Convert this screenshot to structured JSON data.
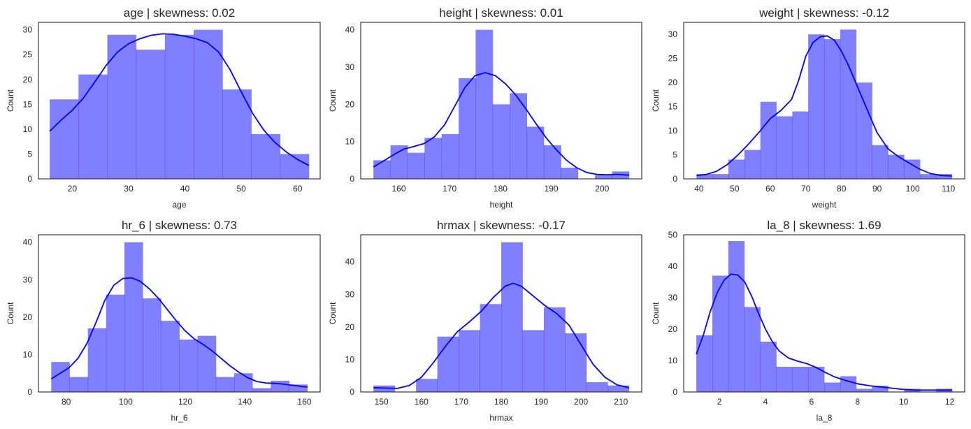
{
  "figure": {
    "bar_color": "#0000ff",
    "bar_opacity": 0.5,
    "kde_color": "#0000ff",
    "frame_color": "#262626"
  },
  "chart_data": [
    {
      "type": "bar",
      "subtype": "histogram",
      "title": "age | skewness: 0.02",
      "xlabel": "age",
      "ylabel": "Count",
      "bin_start": 16,
      "bin_end": 62,
      "values": [
        16,
        21,
        29,
        26,
        29,
        30,
        18,
        9,
        5
      ],
      "xlim": [
        14,
        64
      ],
      "ylim": [
        0,
        31.5
      ],
      "xticks": [
        20,
        30,
        40,
        50,
        60
      ],
      "yticks": [
        0,
        5,
        10,
        15,
        20,
        25,
        30
      ],
      "kde": [
        [
          16,
          9.6
        ],
        [
          18,
          11.8
        ],
        [
          20,
          13.8
        ],
        [
          22,
          16.3
        ],
        [
          24,
          19.5
        ],
        [
          26,
          22.8
        ],
        [
          28,
          25.5
        ],
        [
          30,
          27.2
        ],
        [
          32,
          28.2
        ],
        [
          34,
          28.9
        ],
        [
          36,
          29.2
        ],
        [
          38,
          29.1
        ],
        [
          40,
          28.7
        ],
        [
          42,
          28.2
        ],
        [
          44,
          27.4
        ],
        [
          46,
          25.5
        ],
        [
          48,
          22
        ],
        [
          50,
          17.5
        ],
        [
          52,
          13.2
        ],
        [
          54,
          9.8
        ],
        [
          56,
          7.3
        ],
        [
          58,
          5.4
        ],
        [
          60,
          3.9
        ],
        [
          62,
          2.7
        ]
      ]
    },
    {
      "type": "bar",
      "subtype": "histogram",
      "title": "height | skewness: 0.01",
      "xlabel": "height",
      "ylabel": "Count",
      "bin_start": 155,
      "bin_end": 205.3,
      "values": [
        5,
        9,
        7,
        11,
        12,
        27,
        40,
        20,
        23,
        14,
        9,
        3,
        0,
        1,
        2
      ],
      "xlim": [
        152.5,
        207.8
      ],
      "ylim": [
        0,
        42
      ],
      "xticks": [
        160,
        170,
        180,
        190,
        200
      ],
      "yticks": [
        0,
        10,
        20,
        30,
        40
      ],
      "kde": [
        [
          155,
          3.2
        ],
        [
          157,
          4.8
        ],
        [
          159,
          6.5
        ],
        [
          161,
          8
        ],
        [
          163,
          8.7
        ],
        [
          165,
          9.5
        ],
        [
          167,
          11.3
        ],
        [
          169,
          14.5
        ],
        [
          171,
          19.5
        ],
        [
          173,
          24.5
        ],
        [
          175,
          27.7
        ],
        [
          177,
          28.5
        ],
        [
          179,
          27.7
        ],
        [
          181,
          25.5
        ],
        [
          183,
          22.5
        ],
        [
          185,
          18.8
        ],
        [
          187,
          14.8
        ],
        [
          189,
          11
        ],
        [
          191,
          7.8
        ],
        [
          193,
          5
        ],
        [
          195,
          3
        ],
        [
          197,
          1.7
        ],
        [
          199,
          1.2
        ],
        [
          201,
          1.1
        ],
        [
          203,
          1.2
        ],
        [
          205.3,
          1
        ]
      ]
    },
    {
      "type": "bar",
      "subtype": "histogram",
      "title": "weight | skewness: -0.12",
      "xlabel": "weight",
      "ylabel": "Count",
      "bin_start": 39.3,
      "bin_end": 111,
      "values": [
        1,
        1,
        4,
        6,
        16,
        13,
        14,
        30,
        29,
        31,
        20,
        7,
        5,
        4,
        1,
        1
      ],
      "xlim": [
        35.7,
        114.6
      ],
      "ylim": [
        0,
        32.5
      ],
      "xticks": [
        40,
        50,
        60,
        70,
        80,
        90,
        100,
        110
      ],
      "yticks": [
        0,
        5,
        10,
        15,
        20,
        25,
        30
      ],
      "kde": [
        [
          39.3,
          0.7
        ],
        [
          42,
          0.9
        ],
        [
          45,
          1.6
        ],
        [
          48,
          3
        ],
        [
          51,
          5
        ],
        [
          54,
          7.3
        ],
        [
          57,
          9.8
        ],
        [
          60,
          12.5
        ],
        [
          63,
          14.2
        ],
        [
          66,
          16.5
        ],
        [
          68,
          20.5
        ],
        [
          70,
          25.5
        ],
        [
          72,
          28.3
        ],
        [
          74,
          29.5
        ],
        [
          76,
          29.7
        ],
        [
          78,
          28.8
        ],
        [
          80,
          26.5
        ],
        [
          82,
          23.5
        ],
        [
          84,
          20
        ],
        [
          86,
          16.5
        ],
        [
          88,
          13
        ],
        [
          90,
          9.6
        ],
        [
          93,
          6.3
        ],
        [
          96,
          4.6
        ],
        [
          99,
          3.3
        ],
        [
          102,
          2
        ],
        [
          105,
          1.1
        ],
        [
          108,
          0.7
        ],
        [
          111,
          0.6
        ]
      ]
    },
    {
      "type": "bar",
      "subtype": "histogram",
      "title": "hr_6 | skewness: 0.73",
      "xlabel": "hr_6",
      "ylabel": "Count",
      "bin_start": 75,
      "bin_end": 161,
      "values": [
        8,
        4,
        17,
        26,
        40,
        25,
        19,
        14,
        15,
        4,
        5,
        1,
        3,
        2
      ],
      "xlim": [
        70.7,
        165.3
      ],
      "ylim": [
        0,
        42
      ],
      "xticks": [
        80,
        100,
        120,
        140,
        160
      ],
      "yticks": [
        0,
        10,
        20,
        30,
        40
      ],
      "kde": [
        [
          75,
          3.5
        ],
        [
          78,
          5
        ],
        [
          81,
          6.5
        ],
        [
          84,
          9
        ],
        [
          87,
          13
        ],
        [
          90,
          18.5
        ],
        [
          93,
          24.5
        ],
        [
          96,
          28.5
        ],
        [
          99,
          30.3
        ],
        [
          102,
          30.5
        ],
        [
          105,
          29.5
        ],
        [
          108,
          27.5
        ],
        [
          111,
          25
        ],
        [
          114,
          22
        ],
        [
          117,
          19
        ],
        [
          120,
          16.3
        ],
        [
          123,
          14.2
        ],
        [
          126,
          12.7
        ],
        [
          129,
          11
        ],
        [
          132,
          9
        ],
        [
          135,
          7
        ],
        [
          138,
          5.3
        ],
        [
          141,
          3.8
        ],
        [
          144,
          2.8
        ],
        [
          147,
          2.4
        ],
        [
          150,
          2.3
        ],
        [
          153,
          2.1
        ],
        [
          156,
          1.8
        ],
        [
          159,
          1.5
        ],
        [
          161,
          1.3
        ]
      ]
    },
    {
      "type": "bar",
      "subtype": "histogram",
      "title": "hrmax | skewness: -0.17",
      "xlabel": "hrmax",
      "ylabel": "Count",
      "bin_start": 148,
      "bin_end": 212,
      "values": [
        2,
        0,
        4,
        17,
        19,
        27,
        46,
        19,
        26,
        18,
        3,
        2
      ],
      "xlim": [
        144.8,
        215.2
      ],
      "ylim": [
        0,
        48.3
      ],
      "xticks": [
        150,
        160,
        170,
        180,
        190,
        200,
        210
      ],
      "yticks": [
        0,
        10,
        20,
        30,
        40
      ],
      "kde": [
        [
          148,
          1.3
        ],
        [
          151,
          1.2
        ],
        [
          154,
          1.1
        ],
        [
          157,
          2
        ],
        [
          160,
          4.5
        ],
        [
          163,
          9
        ],
        [
          166,
          14
        ],
        [
          169,
          18.5
        ],
        [
          172,
          21.5
        ],
        [
          175,
          24.8
        ],
        [
          178,
          29
        ],
        [
          181,
          32.5
        ],
        [
          183,
          33.4
        ],
        [
          185,
          32.5
        ],
        [
          188,
          29.5
        ],
        [
          191,
          26.5
        ],
        [
          194,
          24
        ],
        [
          197,
          20.5
        ],
        [
          200,
          14.5
        ],
        [
          203,
          8.5
        ],
        [
          206,
          4.5
        ],
        [
          209,
          2.2
        ],
        [
          212,
          1.3
        ]
      ]
    },
    {
      "type": "bar",
      "subtype": "histogram",
      "title": "la_8 | skewness: 1.69",
      "xlabel": "la_8",
      "ylabel": "Count",
      "bin_start": 1,
      "bin_end": 12.1,
      "values": [
        18,
        37,
        48,
        27,
        16,
        8,
        8,
        8,
        3,
        5,
        1,
        2,
        0,
        1,
        0,
        1
      ],
      "xlim": [
        0.45,
        12.65
      ],
      "ylim": [
        0,
        50
      ],
      "xticks": [
        2,
        4,
        6,
        8,
        10,
        12
      ],
      "yticks": [
        0,
        10,
        20,
        30,
        40,
        50
      ],
      "kde": [
        [
          1,
          12
        ],
        [
          1.3,
          18
        ],
        [
          1.6,
          25.5
        ],
        [
          1.9,
          31.5
        ],
        [
          2.2,
          35.5
        ],
        [
          2.5,
          37.5
        ],
        [
          2.8,
          37.2
        ],
        [
          3.1,
          35
        ],
        [
          3.4,
          30.5
        ],
        [
          3.7,
          25
        ],
        [
          4,
          20
        ],
        [
          4.3,
          16
        ],
        [
          4.6,
          13
        ],
        [
          5,
          10.8
        ],
        [
          5.4,
          9.8
        ],
        [
          5.8,
          9
        ],
        [
          6.2,
          7.8
        ],
        [
          6.6,
          6.2
        ],
        [
          7,
          4.8
        ],
        [
          7.5,
          3.6
        ],
        [
          8,
          2.6
        ],
        [
          8.5,
          2
        ],
        [
          9,
          1.6
        ],
        [
          9.5,
          1.2
        ],
        [
          10,
          0.8
        ],
        [
          10.5,
          0.6
        ],
        [
          11,
          0.6
        ],
        [
          11.5,
          0.6
        ],
        [
          12.1,
          0.6
        ]
      ]
    }
  ]
}
